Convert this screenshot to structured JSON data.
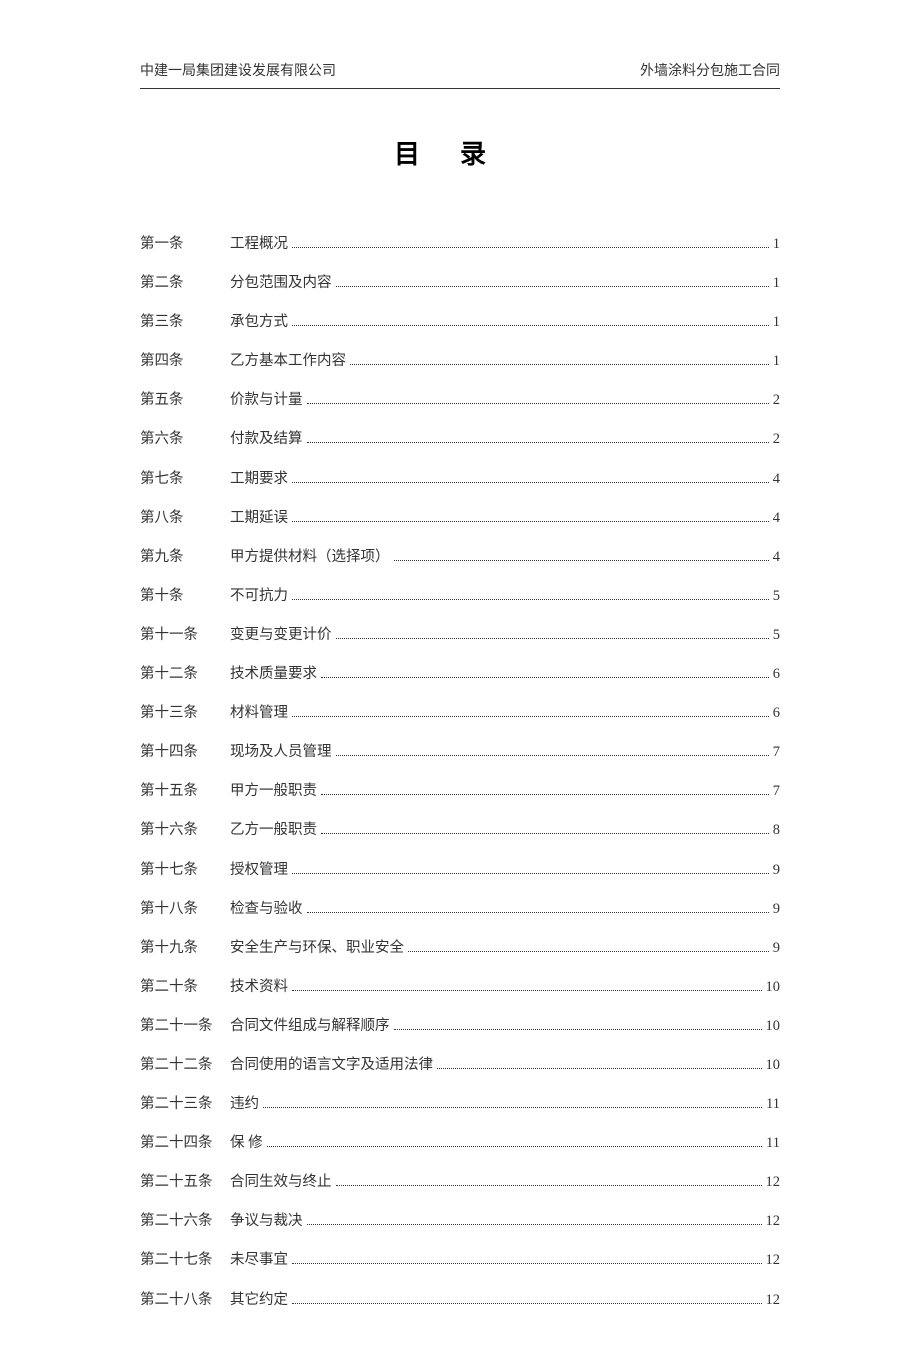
{
  "header": {
    "left": "中建一局集团建设发展有限公司",
    "right": "外墙涂料分包施工合同"
  },
  "title": "目录",
  "toc": [
    {
      "label": "第一条",
      "title": "工程概况",
      "page": "1"
    },
    {
      "label": "第二条",
      "title": "分包范围及内容",
      "page": "1"
    },
    {
      "label": "第三条",
      "title": "承包方式",
      "page": "1"
    },
    {
      "label": "第四条",
      "title": "乙方基本工作内容",
      "page": "1"
    },
    {
      "label": "第五条",
      "title": "价款与计量",
      "page": "2"
    },
    {
      "label": "第六条",
      "title": "付款及结算",
      "page": "2"
    },
    {
      "label": "第七条",
      "title": "工期要求",
      "page": "4"
    },
    {
      "label": "第八条",
      "title": "工期延误",
      "page": "4"
    },
    {
      "label": "第九条",
      "title": "甲方提供材料（选择项）",
      "page": "4"
    },
    {
      "label": "第十条",
      "title": "不可抗力",
      "page": "5"
    },
    {
      "label": "第十一条",
      "title": "变更与变更计价",
      "page": "5"
    },
    {
      "label": "第十二条",
      "title": "技术质量要求",
      "page": "6"
    },
    {
      "label": "第十三条",
      "title": "材料管理",
      "page": "6"
    },
    {
      "label": "第十四条",
      "title": "现场及人员管理",
      "page": "7"
    },
    {
      "label": "第十五条",
      "title": "甲方一般职责",
      "page": "7"
    },
    {
      "label": "第十六条",
      "title": "乙方一般职责",
      "page": "8"
    },
    {
      "label": "第十七条",
      "title": "授权管理",
      "page": "9"
    },
    {
      "label": "第十八条",
      "title": "检查与验收",
      "page": "9"
    },
    {
      "label": "第十九条",
      "title": "安全生产与环保、职业安全",
      "page": "9"
    },
    {
      "label": "第二十条",
      "title": "技术资料",
      "page": "10"
    },
    {
      "label": "第二十一条",
      "title": "合同文件组成与解释顺序",
      "page": "10"
    },
    {
      "label": "第二十二条",
      "title": "合同使用的语言文字及适用法律",
      "page": "10"
    },
    {
      "label": "第二十三条",
      "title": "违约",
      "page": "11"
    },
    {
      "label": "第二十四条",
      "title": "保 修",
      "page": "11"
    },
    {
      "label": "第二十五条",
      "title": "合同生效与终止",
      "page": "12"
    },
    {
      "label": "第二十六条",
      "title": "争议与裁决",
      "page": "12"
    },
    {
      "label": "第二十七条",
      "title": "未尽事宜",
      "page": "12"
    },
    {
      "label": "第二十八条",
      "title": "其它约定",
      "page": "12"
    }
  ]
}
